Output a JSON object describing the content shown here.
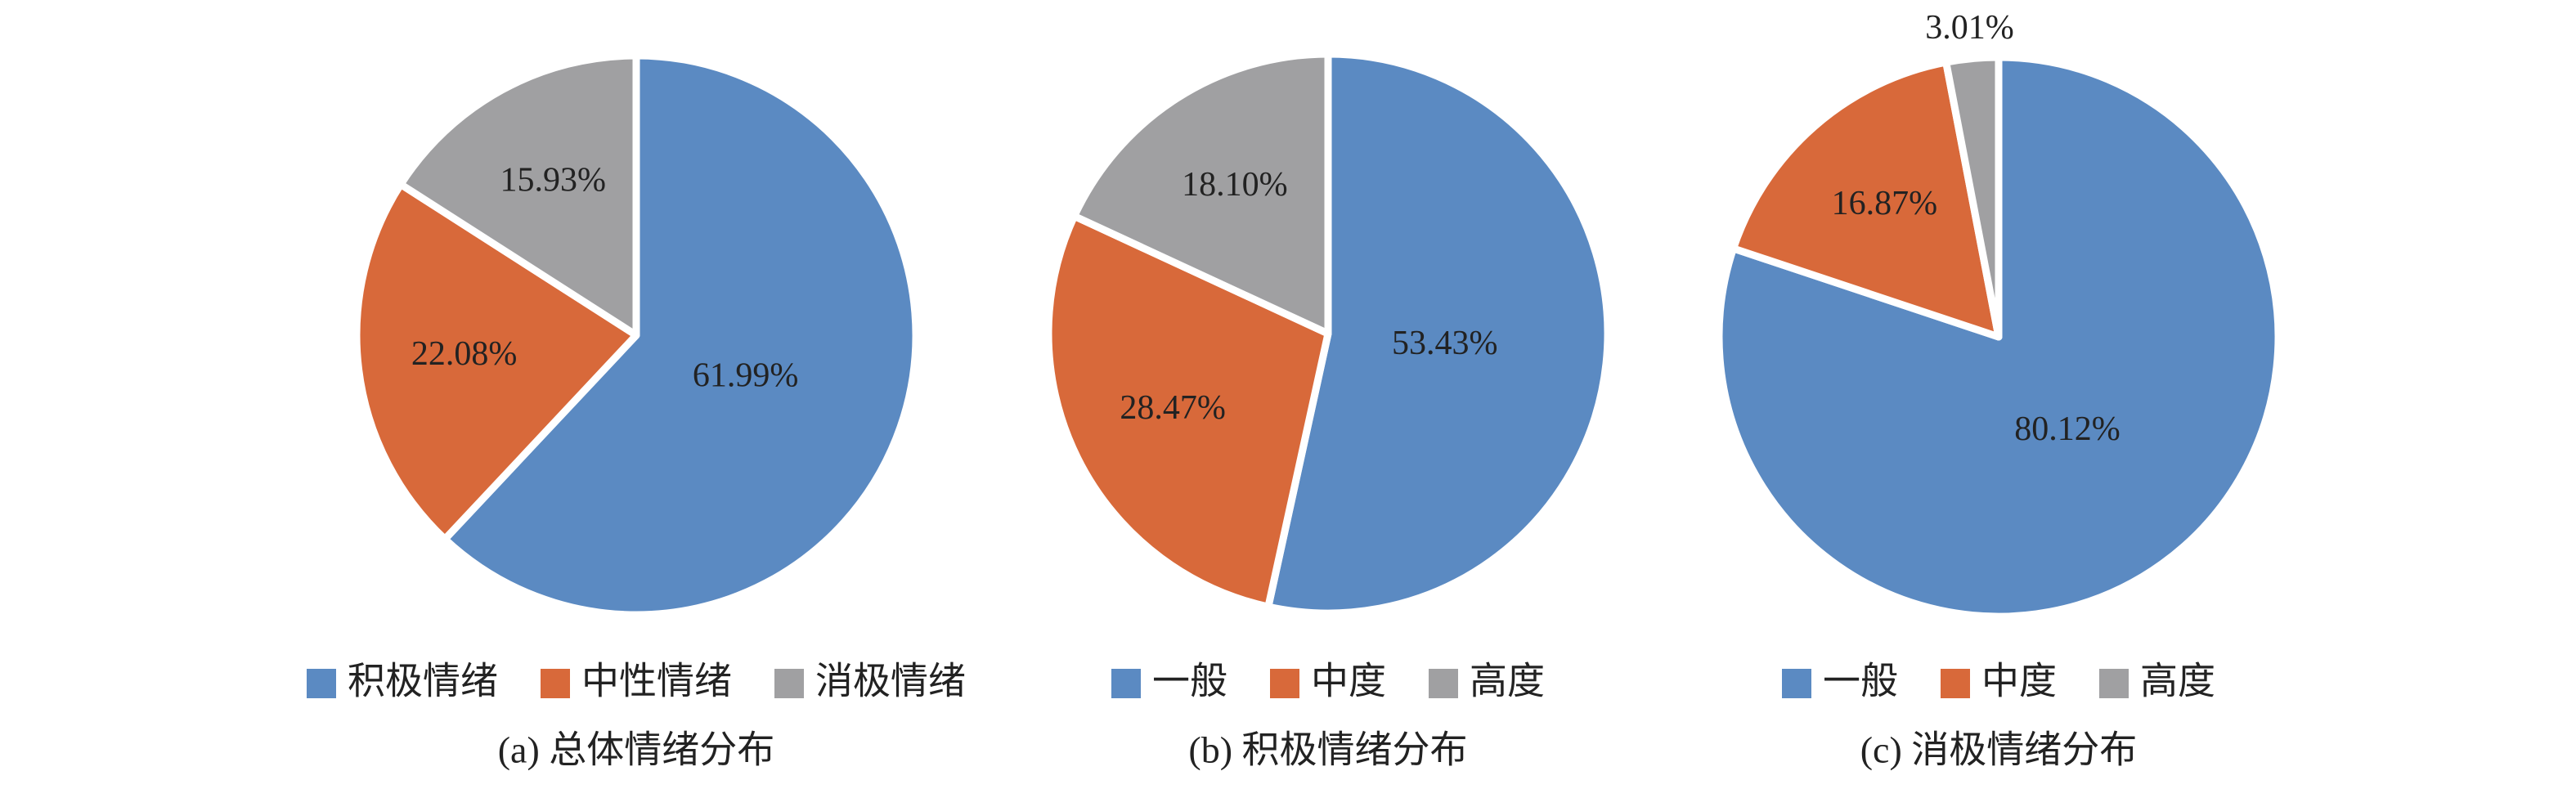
{
  "chart_data": [
    {
      "type": "pie",
      "title": "(a) 总体情绪分布",
      "categories": [
        "积极情绪",
        "中性情绪",
        "消极情绪"
      ],
      "values": [
        61.99,
        22.08,
        15.93
      ],
      "value_labels": [
        "61.99%",
        "22.08%",
        "15.93%"
      ],
      "colors": [
        "#5b8ac2",
        "#d8693a",
        "#a0a0a2"
      ]
    },
    {
      "type": "pie",
      "title": "(b) 积极情绪分布",
      "categories": [
        "一般",
        "中度",
        "高度"
      ],
      "values": [
        53.43,
        28.47,
        18.1
      ],
      "value_labels": [
        "53.43%",
        "28.47%",
        "18.10%"
      ],
      "colors": [
        "#5b8ac2",
        "#d8693a",
        "#a0a0a2"
      ]
    },
    {
      "type": "pie",
      "title": "(c) 消极情绪分布",
      "categories": [
        "一般",
        "中度",
        "高度"
      ],
      "values": [
        80.12,
        16.87,
        3.01
      ],
      "value_labels": [
        "80.12%",
        "16.87%",
        "3.01%"
      ],
      "colors": [
        "#5b8ac2",
        "#d8693a",
        "#a0a0a2"
      ]
    }
  ]
}
